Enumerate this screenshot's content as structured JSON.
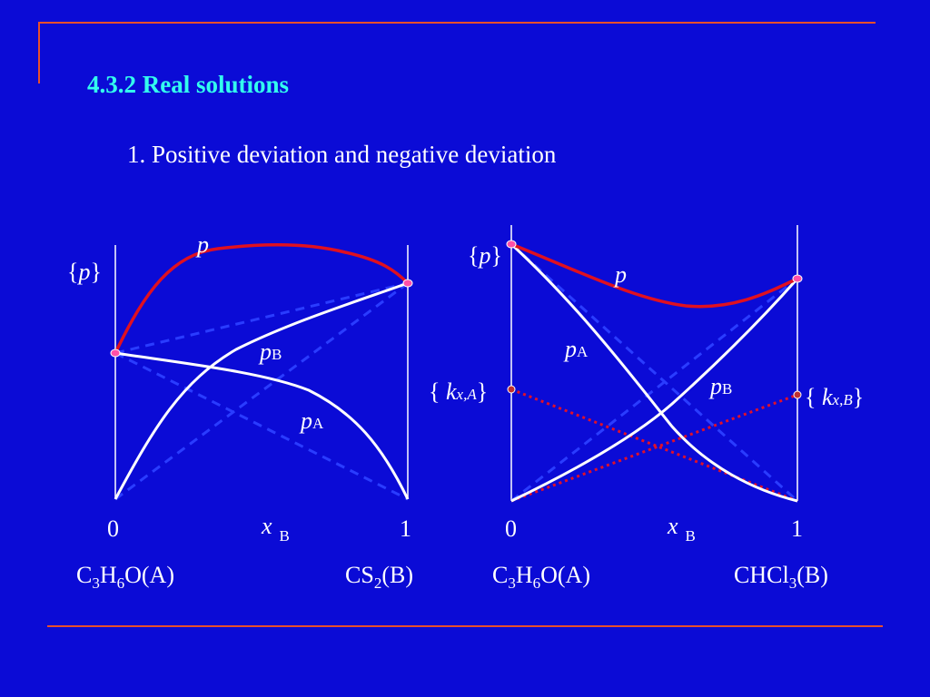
{
  "slide": {
    "title": "4.3.2 Real solutions",
    "subtitle": "1. Positive deviation and negative deviation"
  },
  "colors": {
    "background": "#0b0bd6",
    "title": "#33ffee",
    "accent_line": "#e8502a",
    "total_pressure_curve": "#e01020",
    "partial_pressure_curve": "#ffffff",
    "raoult_dashed": "#2a3cff",
    "henry_dotted": "#e0102a",
    "endpoint_marker": "#ff4fa8"
  },
  "diagrams": [
    {
      "name": "positive-deviation",
      "y_axis_label": {
        "open": "{",
        "var": "p",
        "close": "}"
      },
      "curve_labels": {
        "total": "p",
        "pB": {
          "main": "p",
          "sub": "B"
        },
        "pA": {
          "main": "p",
          "sub": "A"
        }
      },
      "x_axis": {
        "tick_left": "0",
        "tick_right": "1",
        "label": {
          "main": "x",
          "sub": "B"
        }
      },
      "component_A": [
        {
          "t": "C"
        },
        {
          "s": "3"
        },
        {
          "t": "H"
        },
        {
          "s": "6"
        },
        {
          "t": "O(A)"
        }
      ],
      "component_B": [
        {
          "t": "CS"
        },
        {
          "s": "2"
        },
        {
          "t": "(B)"
        }
      ]
    },
    {
      "name": "negative-deviation",
      "y_axis_label": {
        "open": "{",
        "var": "p",
        "close": "}"
      },
      "curve_labels": {
        "total": "p",
        "pA": {
          "main": "p",
          "sub": "A"
        },
        "pB": {
          "main": "p",
          "sub": "B"
        }
      },
      "henry_labels": {
        "left": {
          "open": "{ ",
          "main": "k",
          "sub": "x,A",
          "close": "}"
        },
        "right": {
          "open": "{ ",
          "main": "k",
          "sub": "x,B",
          "close": "}"
        }
      },
      "x_axis": {
        "tick_left": "0",
        "tick_right": "1",
        "label": {
          "main": "x",
          "sub": "B"
        }
      },
      "component_A": [
        {
          "t": "C"
        },
        {
          "s": "3"
        },
        {
          "t": "H"
        },
        {
          "s": "6"
        },
        {
          "t": "O(A)"
        }
      ],
      "component_B": [
        {
          "t": "CHCl"
        },
        {
          "s": "3"
        },
        {
          "t": "(B)"
        }
      ]
    }
  ]
}
